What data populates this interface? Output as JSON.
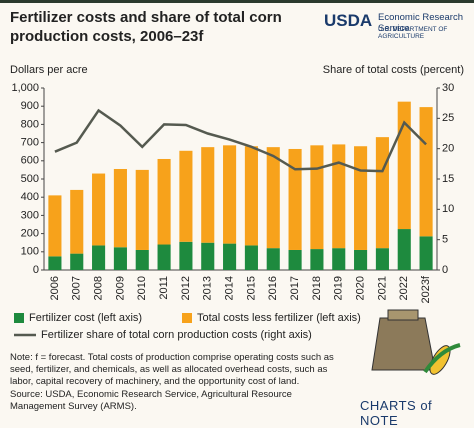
{
  "chart_data": {
    "type": "bar",
    "stacked": true,
    "title": "Fertilizer costs and share of total corn production costs, 2006–23f",
    "agency": "USDA",
    "agency_line1": "Economic Research Service",
    "agency_line2": "U.S. DEPARTMENT OF AGRICULTURE",
    "y_label": "Dollars per acre",
    "y2_label": "Share of total costs (percent)",
    "categories": [
      "2006",
      "2007",
      "2008",
      "2009",
      "2010",
      "2011",
      "2012",
      "2013",
      "2014",
      "2015",
      "2016",
      "2017",
      "2018",
      "2019",
      "2020",
      "2021",
      "2022",
      "2023f"
    ],
    "series": [
      {
        "name": "Fertilizer cost (left axis)",
        "type": "bar",
        "color": "#1e8a3e",
        "values": [
          75,
          90,
          135,
          125,
          110,
          140,
          155,
          150,
          145,
          135,
          120,
          110,
          115,
          120,
          110,
          120,
          225,
          185
        ]
      },
      {
        "name": "Total costs less fertilizer (left axis)",
        "type": "bar",
        "color": "#f7a21b",
        "values": [
          335,
          350,
          395,
          430,
          440,
          470,
          500,
          525,
          540,
          545,
          555,
          555,
          570,
          570,
          570,
          610,
          700,
          710
        ]
      },
      {
        "name": "Fertilizer share of total corn production costs (right axis)",
        "type": "line",
        "axis": "y2",
        "color": "#555a50",
        "values": [
          19.5,
          21,
          26.3,
          23.8,
          20.3,
          24,
          23.9,
          22.5,
          21.5,
          20.3,
          18.8,
          16.6,
          16.7,
          17.7,
          16.4,
          16.3,
          24.3,
          20.7
        ]
      }
    ],
    "ylim": [
      0,
      1000
    ],
    "yticks": [
      0,
      100,
      200,
      300,
      400,
      500,
      600,
      700,
      800,
      900,
      {
        "value": 1000,
        "label": "1,000"
      }
    ],
    "y2lim": [
      0,
      30
    ],
    "y2ticks": [
      0,
      5,
      10,
      15,
      20,
      25,
      30
    ],
    "note": "Note: f = forecast. Total costs of production comprise operating costs such as seed, fertilizer, and chemicals, as well as allocated overhead costs, such as labor, capital recovery of machinery, and the opportunity cost of land.",
    "source": "Source: USDA, Economic Research Service, Agricultural Resource Management Survey (ARMS).",
    "brand": "CHARTS of NOTE"
  }
}
